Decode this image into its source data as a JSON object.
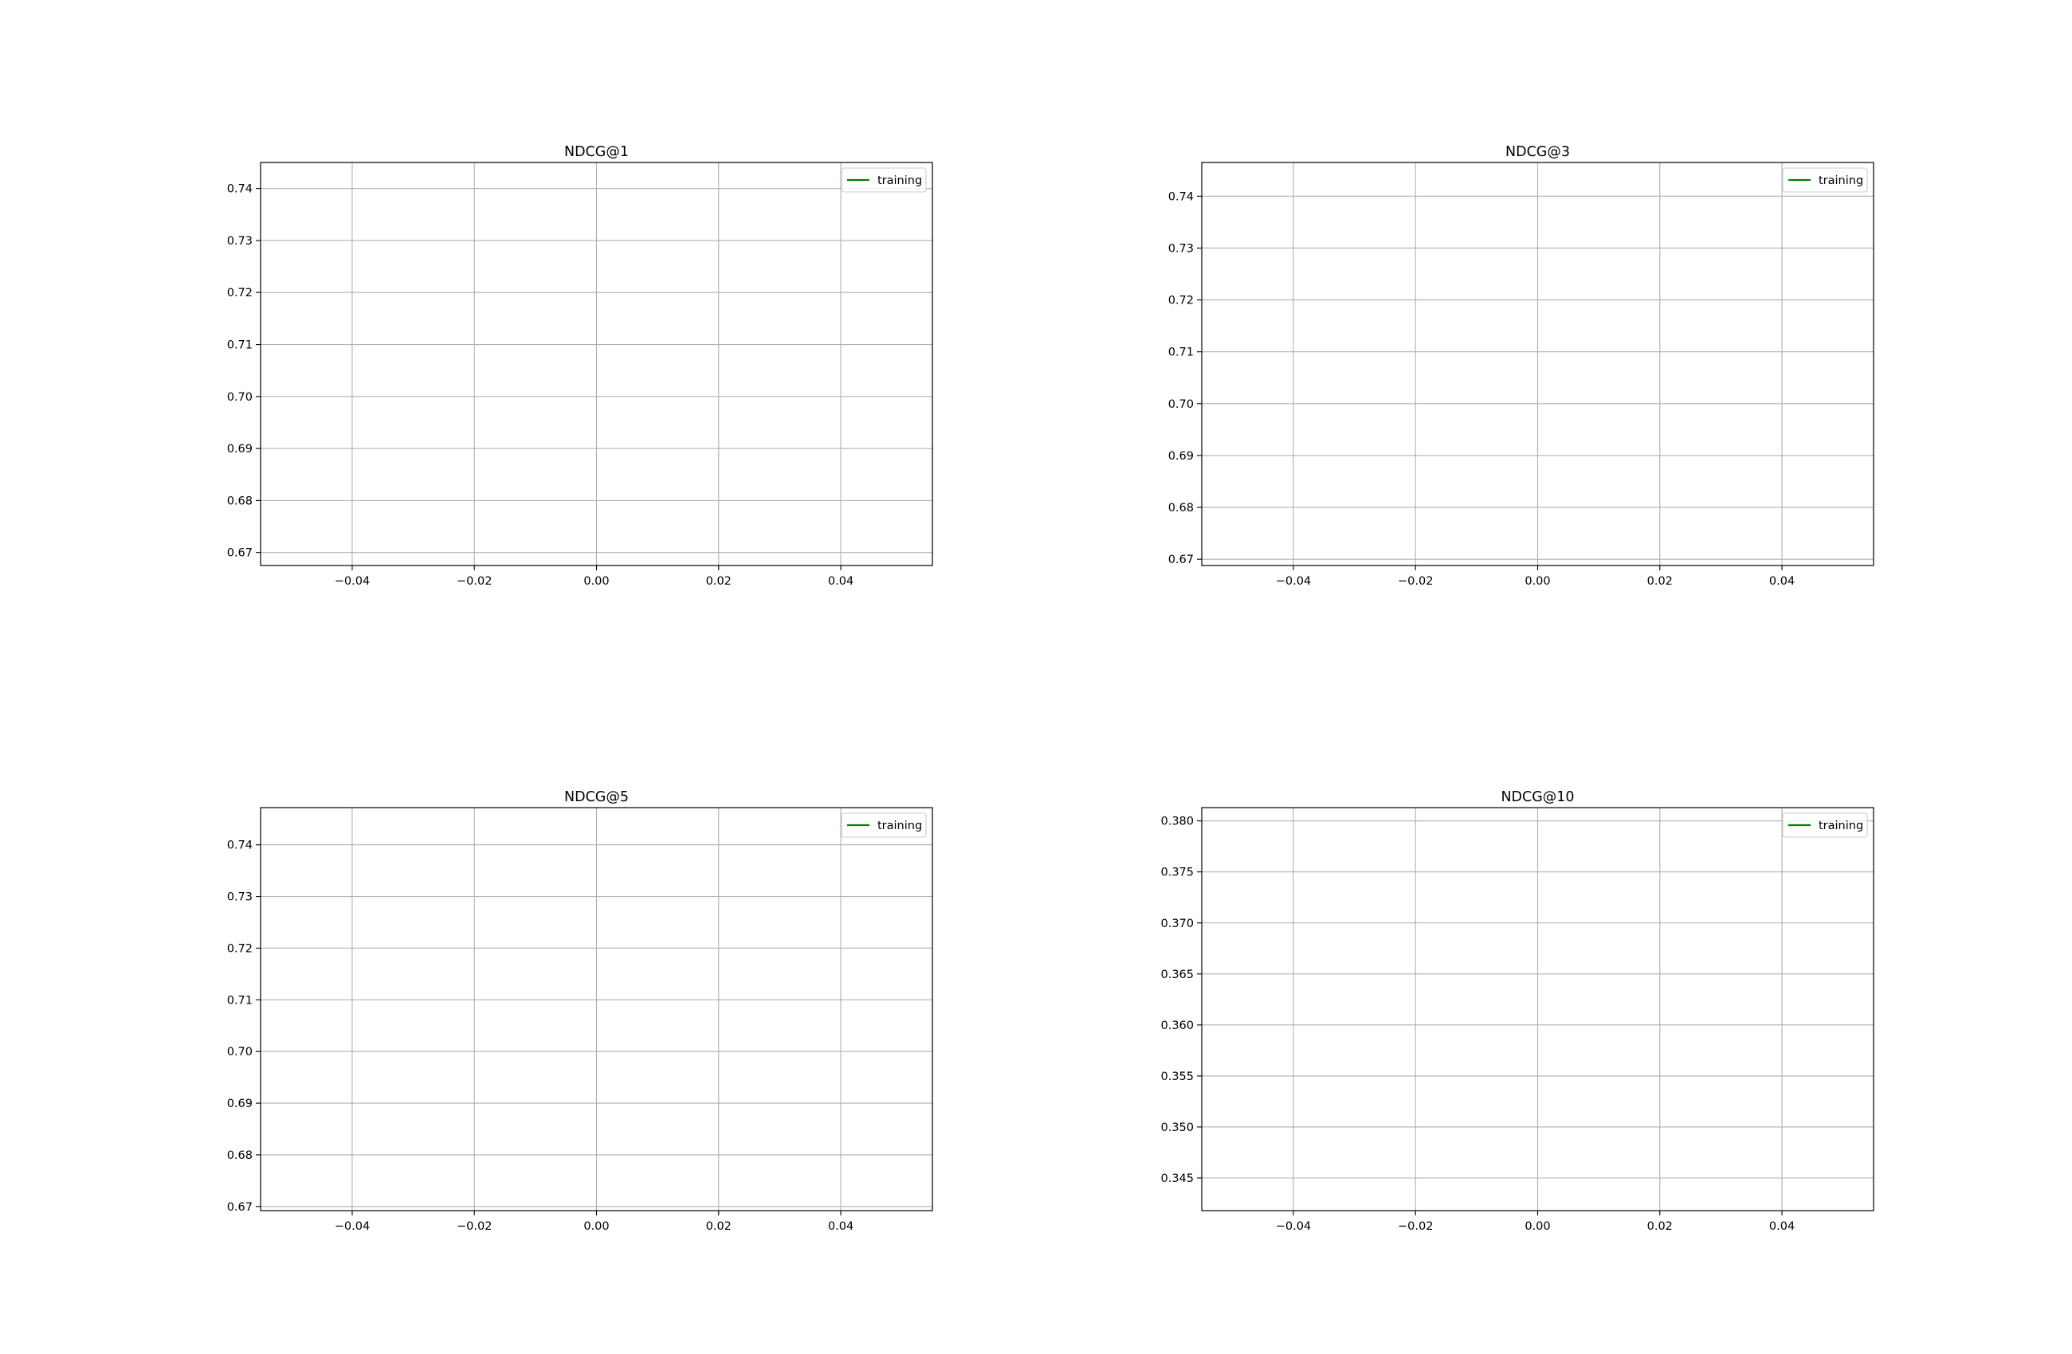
{
  "chart_data": [
    {
      "type": "line",
      "title": "NDCG@1",
      "xlabel": "",
      "ylabel": "",
      "xlim": [
        -0.055,
        0.055
      ],
      "ylim": [
        0.6675,
        0.745
      ],
      "xticks": [
        -0.04,
        -0.02,
        0.0,
        0.02,
        0.04
      ],
      "xtick_labels": [
        "−0.04",
        "−0.02",
        "0.00",
        "0.02",
        "0.04"
      ],
      "yticks": [
        0.67,
        0.68,
        0.69,
        0.7,
        0.71,
        0.72,
        0.73,
        0.74
      ],
      "ytick_labels": [
        "0.67",
        "0.68",
        "0.69",
        "0.70",
        "0.71",
        "0.72",
        "0.73",
        "0.74"
      ],
      "grid": true,
      "legend_position": "upper right",
      "series": [
        {
          "name": "training",
          "color": "#008000",
          "x": [],
          "y": []
        }
      ]
    },
    {
      "type": "line",
      "title": "NDCG@3",
      "xlabel": "",
      "ylabel": "",
      "xlim": [
        -0.055,
        0.055
      ],
      "ylim": [
        0.6688,
        0.7465
      ],
      "xticks": [
        -0.04,
        -0.02,
        0.0,
        0.02,
        0.04
      ],
      "xtick_labels": [
        "−0.04",
        "−0.02",
        "0.00",
        "0.02",
        "0.04"
      ],
      "yticks": [
        0.67,
        0.68,
        0.69,
        0.7,
        0.71,
        0.72,
        0.73,
        0.74
      ],
      "ytick_labels": [
        "0.67",
        "0.68",
        "0.69",
        "0.70",
        "0.71",
        "0.72",
        "0.73",
        "0.74"
      ],
      "grid": true,
      "legend_position": "upper right",
      "series": [
        {
          "name": "training",
          "color": "#008000",
          "x": [],
          "y": []
        }
      ]
    },
    {
      "type": "line",
      "title": "NDCG@5",
      "xlabel": "",
      "ylabel": "",
      "xlim": [
        -0.055,
        0.055
      ],
      "ylim": [
        0.6692,
        0.7472
      ],
      "xticks": [
        -0.04,
        -0.02,
        0.0,
        0.02,
        0.04
      ],
      "xtick_labels": [
        "−0.04",
        "−0.02",
        "0.00",
        "0.02",
        "0.04"
      ],
      "yticks": [
        0.67,
        0.68,
        0.69,
        0.7,
        0.71,
        0.72,
        0.73,
        0.74
      ],
      "ytick_labels": [
        "0.67",
        "0.68",
        "0.69",
        "0.70",
        "0.71",
        "0.72",
        "0.73",
        "0.74"
      ],
      "grid": true,
      "legend_position": "upper right",
      "series": [
        {
          "name": "training",
          "color": "#008000",
          "x": [],
          "y": []
        }
      ]
    },
    {
      "type": "line",
      "title": "NDCG@10",
      "xlabel": "",
      "ylabel": "",
      "xlim": [
        -0.055,
        0.055
      ],
      "ylim": [
        0.3418,
        0.3813
      ],
      "xticks": [
        -0.04,
        -0.02,
        0.0,
        0.02,
        0.04
      ],
      "xtick_labels": [
        "−0.04",
        "−0.02",
        "0.00",
        "0.02",
        "0.04"
      ],
      "yticks": [
        0.345,
        0.35,
        0.355,
        0.36,
        0.365,
        0.37,
        0.375,
        0.38
      ],
      "ytick_labels": [
        "0.345",
        "0.350",
        "0.355",
        "0.360",
        "0.365",
        "0.370",
        "0.375",
        "0.380"
      ],
      "grid": true,
      "legend_position": "upper right",
      "series": [
        {
          "name": "training",
          "color": "#008000",
          "x": [],
          "y": []
        }
      ]
    }
  ]
}
